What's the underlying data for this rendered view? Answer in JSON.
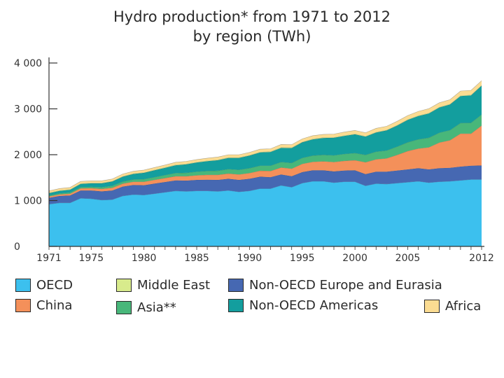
{
  "chart_data": {
    "type": "area",
    "stacked": true,
    "title_lines": [
      "Hydro production* from 1971 to 2012",
      "by region (TWh)"
    ],
    "ylim": [
      0,
      4000
    ],
    "yticks": [
      0,
      1000,
      2000,
      3000,
      4000
    ],
    "ytick_labels": [
      "0",
      "1 000",
      "2 000",
      "3 000",
      "4 000"
    ],
    "xlim": [
      1971,
      2012
    ],
    "xticks": [
      1971,
      1975,
      1980,
      1985,
      1990,
      1995,
      2000,
      2005,
      2012
    ],
    "xtick_labels": [
      "1971",
      "1975",
      "1980",
      "1985",
      "1990",
      "1995",
      "2000",
      "2005",
      "2012"
    ],
    "x": [
      1971,
      1972,
      1973,
      1974,
      1975,
      1976,
      1977,
      1978,
      1979,
      1980,
      1981,
      1982,
      1983,
      1984,
      1985,
      1986,
      1987,
      1988,
      1989,
      1990,
      1991,
      1992,
      1993,
      1994,
      1995,
      1996,
      1997,
      1998,
      1999,
      2000,
      2001,
      2002,
      2003,
      2004,
      2005,
      2006,
      2007,
      2008,
      2009,
      2010,
      2011,
      2012
    ],
    "series": [
      {
        "name": "OECD",
        "color": "#3cc0ee",
        "values": [
          920,
          950,
          950,
          1050,
          1040,
          1010,
          1020,
          1100,
          1130,
          1120,
          1150,
          1180,
          1210,
          1200,
          1210,
          1210,
          1200,
          1220,
          1190,
          1210,
          1260,
          1260,
          1330,
          1290,
          1380,
          1420,
          1420,
          1390,
          1410,
          1410,
          1320,
          1370,
          1360,
          1380,
          1400,
          1420,
          1390,
          1410,
          1420,
          1440,
          1460,
          1460
        ]
      },
      {
        "name": "Non-OECD Europe and Eurasia",
        "color": "#4668b2",
        "values": [
          140,
          150,
          160,
          170,
          180,
          190,
          200,
          205,
          210,
          215,
          220,
          225,
          230,
          235,
          240,
          245,
          250,
          255,
          260,
          265,
          260,
          250,
          240,
          240,
          240,
          240,
          240,
          245,
          245,
          250,
          255,
          260,
          270,
          275,
          280,
          285,
          290,
          295,
          295,
          300,
          300,
          305
        ]
      },
      {
        "name": "China",
        "color": "#f4905a",
        "values": [
          30,
          35,
          40,
          45,
          50,
          55,
          60,
          65,
          70,
          75,
          80,
          85,
          90,
          95,
          100,
          105,
          110,
          115,
          120,
          125,
          130,
          135,
          150,
          165,
          180,
          185,
          195,
          205,
          210,
          220,
          260,
          270,
          290,
          340,
          400,
          430,
          480,
          560,
          600,
          720,
          700,
          870
        ]
      },
      {
        "name": "Asia**",
        "color": "#48b77a",
        "values": [
          20,
          22,
          25,
          28,
          30,
          35,
          40,
          45,
          50,
          55,
          60,
          65,
          70,
          75,
          80,
          85,
          90,
          95,
          100,
          105,
          110,
          115,
          120,
          125,
          130,
          135,
          140,
          145,
          150,
          155,
          160,
          165,
          170,
          180,
          190,
          200,
          210,
          215,
          220,
          230,
          235,
          240
        ]
      },
      {
        "name": "Non-OECD Americas",
        "color": "#139e9e",
        "values": [
          50,
          55,
          60,
          70,
          75,
          85,
          95,
          105,
          120,
          140,
          150,
          160,
          170,
          185,
          200,
          215,
          230,
          245,
          260,
          275,
          290,
          300,
          310,
          325,
          340,
          355,
          370,
          385,
          395,
          410,
          400,
          420,
          440,
          460,
          490,
          510,
          530,
          550,
          560,
          590,
          600,
          630
        ]
      },
      {
        "name": "Middle East",
        "color": "#d8eb8c",
        "values": [
          10,
          10,
          10,
          10,
          10,
          10,
          10,
          10,
          10,
          10,
          10,
          10,
          10,
          10,
          10,
          10,
          10,
          10,
          10,
          10,
          10,
          10,
          10,
          10,
          10,
          10,
          10,
          10,
          10,
          10,
          10,
          10,
          10,
          10,
          10,
          10,
          10,
          10,
          10,
          10,
          10,
          10
        ]
      },
      {
        "name": "Africa",
        "color": "#fbdc92",
        "values": [
          40,
          40,
          40,
          45,
          45,
          45,
          45,
          50,
          50,
          50,
          50,
          50,
          55,
          55,
          55,
          55,
          60,
          60,
          60,
          60,
          60,
          60,
          65,
          65,
          65,
          70,
          70,
          70,
          75,
          75,
          75,
          80,
          80,
          85,
          85,
          90,
          95,
          95,
          95,
          100,
          100,
          100
        ]
      }
    ]
  },
  "legend": [
    {
      "key": "oecd",
      "label": "OECD",
      "color": "#3cc0ee"
    },
    {
      "key": "china",
      "label": "China",
      "color": "#f4905a"
    },
    {
      "key": "middle_east",
      "label": "Middle East",
      "color": "#d8eb8c"
    },
    {
      "key": "asia",
      "label": "Asia**",
      "color": "#48b77a"
    },
    {
      "key": "non_oecd_europe",
      "label": "Non-OECD Europe and Eurasia",
      "color": "#4668b2"
    },
    {
      "key": "non_oecd_americas",
      "label": "Non-OECD Americas",
      "color": "#139e9e"
    },
    {
      "key": "africa",
      "label": "Africa",
      "color": "#fbdc92"
    }
  ]
}
